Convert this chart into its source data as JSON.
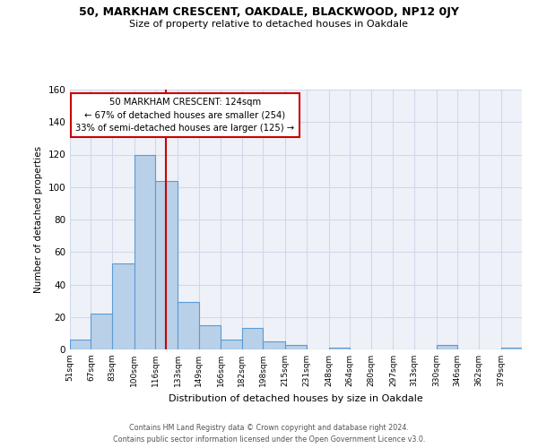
{
  "title": "50, MARKHAM CRESCENT, OAKDALE, BLACKWOOD, NP12 0JY",
  "subtitle": "Size of property relative to detached houses in Oakdale",
  "xlabel": "Distribution of detached houses by size in Oakdale",
  "ylabel": "Number of detached properties",
  "bin_labels": [
    "51sqm",
    "67sqm",
    "83sqm",
    "100sqm",
    "116sqm",
    "133sqm",
    "149sqm",
    "166sqm",
    "182sqm",
    "198sqm",
    "215sqm",
    "231sqm",
    "248sqm",
    "264sqm",
    "280sqm",
    "297sqm",
    "313sqm",
    "330sqm",
    "346sqm",
    "362sqm",
    "379sqm"
  ],
  "bin_values": [
    6,
    22,
    53,
    120,
    104,
    29,
    15,
    6,
    13,
    5,
    3,
    0,
    1,
    0,
    0,
    0,
    0,
    3,
    0,
    0,
    1
  ],
  "bin_edges": [
    51,
    67,
    83,
    100,
    116,
    133,
    149,
    166,
    182,
    198,
    215,
    231,
    248,
    264,
    280,
    297,
    313,
    330,
    346,
    362,
    379,
    395
  ],
  "property_size": 124,
  "bar_color": "#b8d0e8",
  "bar_edge_color": "#5b9bd5",
  "vline_color": "#cc0000",
  "vline_x": 124,
  "annotation_text": "50 MARKHAM CRESCENT: 124sqm\n← 67% of detached houses are smaller (254)\n33% of semi-detached houses are larger (125) →",
  "annotation_box_color": "#ffffff",
  "annotation_box_edge": "#cc0000",
  "ylim": [
    0,
    160
  ],
  "yticks": [
    0,
    20,
    40,
    60,
    80,
    100,
    120,
    140,
    160
  ],
  "grid_color": "#d0d8e8",
  "background_color": "#eef2f8",
  "footer_line1": "Contains HM Land Registry data © Crown copyright and database right 2024.",
  "footer_line2": "Contains public sector information licensed under the Open Government Licence v3.0."
}
